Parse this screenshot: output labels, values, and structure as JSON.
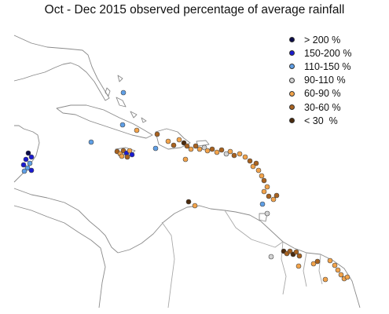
{
  "title": "Oct - Dec 2015 observed percentage of average rainfall",
  "legend": {
    "items": [
      {
        "label": "> 200 %",
        "color": "#0b0b4a"
      },
      {
        "label": "150-200 %",
        "color": "#1a1ad0"
      },
      {
        "label": "110-150 %",
        "color": "#5f9fe6"
      },
      {
        "label": "90-110 %",
        "color": "#d3d3d3"
      },
      {
        "label": "60-90 %",
        "color": "#f2a34a"
      },
      {
        "label": "30-60 %",
        "color": "#a8621f"
      },
      {
        "label": "< 30  %",
        "color": "#4a2a0d"
      }
    ]
  }
}
